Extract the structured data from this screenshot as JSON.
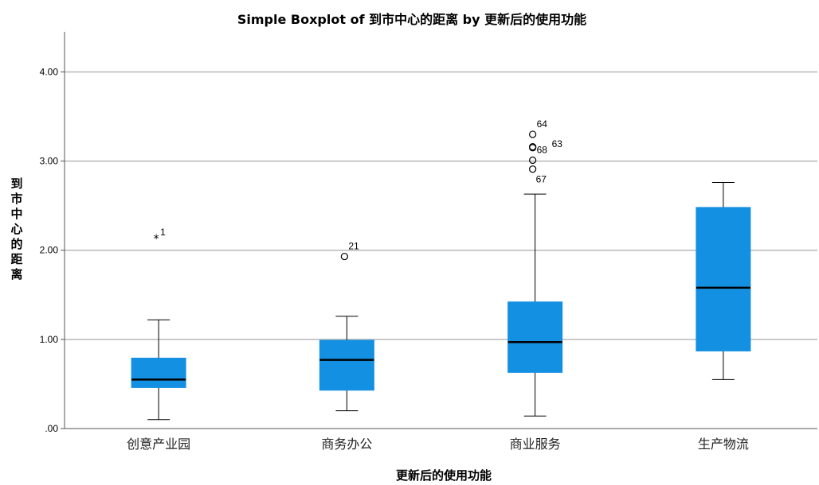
{
  "chart_data": {
    "type": "boxplot",
    "title": "Simple Boxplot of 到市中心的距离 by 更新后的使用功能",
    "xlabel": "更新后的使用功能",
    "ylabel": "到市中心的距离",
    "ylim": [
      0,
      4.45
    ],
    "yticks": [
      0,
      1,
      2,
      3,
      4
    ],
    "ytick_labels": [
      ".00",
      "1.00",
      "2.00",
      "3.00",
      "4.00"
    ],
    "grid": "horizontal",
    "box_color": "#1490E3",
    "categories": [
      "创意产业园",
      "商务办公",
      "商业服务",
      "生产物流"
    ],
    "boxes": [
      {
        "whisker_low": 0.1,
        "q1": 0.46,
        "median": 0.55,
        "q3": 0.79,
        "whisker_high": 1.22
      },
      {
        "whisker_low": 0.2,
        "q1": 0.43,
        "median": 0.77,
        "q3": 0.99,
        "whisker_high": 1.26
      },
      {
        "whisker_low": 0.14,
        "q1": 0.63,
        "median": 0.97,
        "q3": 1.42,
        "whisker_high": 2.63
      },
      {
        "whisker_low": 0.55,
        "q1": 0.87,
        "median": 1.58,
        "q3": 2.48,
        "whisker_high": 2.76
      }
    ],
    "points": [
      {
        "category": 0,
        "value": 2.13,
        "marker": "star",
        "label": "1"
      },
      {
        "category": 1,
        "value": 1.93,
        "marker": "circle",
        "label": "21"
      },
      {
        "category": 2,
        "value": 3.3,
        "marker": "circle",
        "label": "64"
      },
      {
        "category": 2,
        "value": 3.16,
        "marker": "circle",
        "label": "68"
      },
      {
        "category": 2,
        "value": 3.15,
        "marker": "circle",
        "label": "63"
      },
      {
        "category": 2,
        "value": 3.01,
        "marker": "circle",
        "label": ""
      },
      {
        "category": 2,
        "value": 2.91,
        "marker": "circle",
        "label": "67"
      }
    ]
  }
}
